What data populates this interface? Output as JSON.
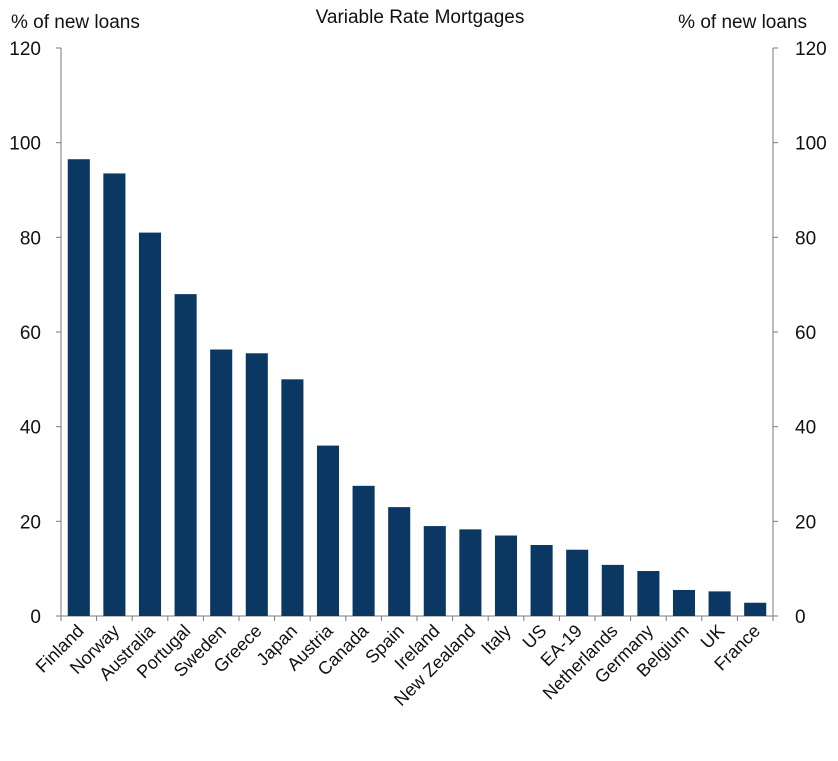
{
  "chart_data": {
    "type": "bar",
    "title": "Variable Rate Mortgages",
    "ylabel_left": "% of new loans",
    "ylabel_right": "% of new loans",
    "xlabel": "",
    "ylim": [
      0,
      120
    ],
    "yticks": [
      0,
      20,
      40,
      60,
      80,
      100,
      120
    ],
    "grid": false,
    "categories": [
      "Finland",
      "Norway",
      "Australia",
      "Portugal",
      "Sweden",
      "Greece",
      "Japan",
      "Austria",
      "Canada",
      "Spain",
      "Ireland",
      "New Zealand",
      "Italy",
      "US",
      "EA-19",
      "Netherlands",
      "Germany",
      "Belgium",
      "UK",
      "France"
    ],
    "values": [
      96.5,
      93.5,
      81,
      68,
      56.3,
      55.5,
      50,
      36,
      27.5,
      23,
      19,
      18.3,
      17,
      15,
      14,
      10.8,
      9.5,
      5.5,
      5.2,
      2.8
    ],
    "bar_color": "#0b3763"
  }
}
